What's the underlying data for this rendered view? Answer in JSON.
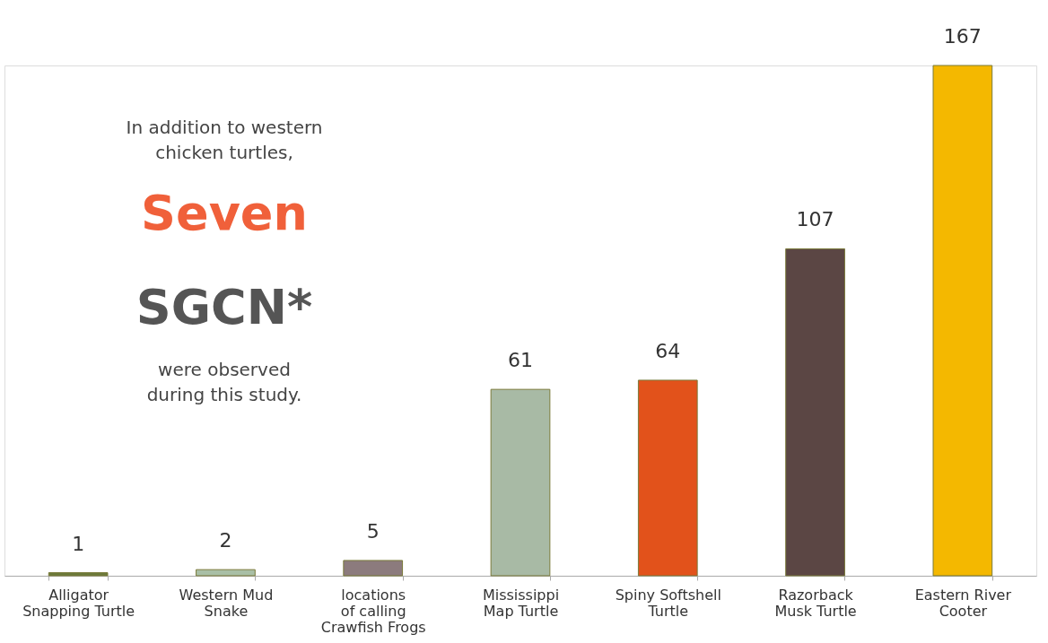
{
  "chart_data": {
    "type": "bar",
    "categories": [
      "Alligator\nSnapping Turtle",
      "Western Mud\nSnake",
      "locations\nof calling\nCrawfish Frogs",
      "Mississippi\nMap Turtle",
      "Spiny Softshell\nTurtle",
      "Razorback\nMusk Turtle",
      "Eastern River\nCooter"
    ],
    "values": [
      1,
      2,
      5,
      61,
      64,
      107,
      167
    ],
    "colors": [
      "#6b7a3a",
      "#a9bfa6",
      "#8c7b7d",
      "#a8baa5",
      "#e2521b",
      "#5b4644",
      "#f4b800"
    ],
    "data_labels": true,
    "grid": false,
    "annotations": [
      "In addition to western\nchicken turtles,",
      "Seven",
      "SGCN*",
      "were observed\nduring this study."
    ]
  }
}
